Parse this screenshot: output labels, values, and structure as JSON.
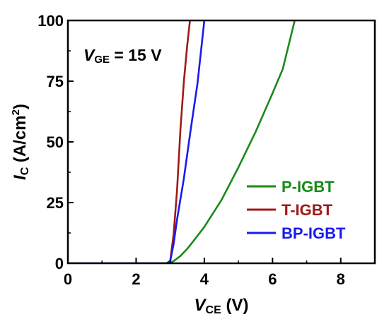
{
  "chart_data": {
    "type": "line",
    "x_axis": {
      "label_main": "V",
      "label_sub": "CE",
      "label_unit": " (V)",
      "range": [
        0,
        9
      ],
      "ticks": [
        0,
        2,
        4,
        6,
        8
      ],
      "tick_labels": [
        "0",
        "2",
        "4",
        "6",
        "8"
      ]
    },
    "y_axis": {
      "label_main": "I",
      "label_sub": "C",
      "label_unit_pre": " (A/cm",
      "label_unit_sup": "2",
      "label_unit_post": ")",
      "range": [
        0,
        100
      ],
      "ticks": [
        0,
        25,
        50,
        75,
        100
      ],
      "tick_labels": [
        "0",
        "25",
        "50",
        "75",
        "100"
      ]
    },
    "grid": false,
    "legend_position": "bottom-right",
    "annotation": {
      "main": "V",
      "sub": "GE",
      "rest": " = 15 V"
    },
    "series": [
      {
        "name": "P-IGBT",
        "color": "#1a8a1a",
        "points": [
          [
            0,
            0
          ],
          [
            2.9,
            0
          ],
          [
            3.0,
            0.3
          ],
          [
            3.1,
            0.9
          ],
          [
            3.3,
            3
          ],
          [
            3.5,
            6
          ],
          [
            3.7,
            9.5
          ],
          [
            4.0,
            15
          ],
          [
            4.5,
            26
          ],
          [
            5.0,
            39.5
          ],
          [
            5.5,
            54
          ],
          [
            6.0,
            70
          ],
          [
            6.3,
            80
          ],
          [
            6.65,
            100
          ]
        ]
      },
      {
        "name": "T-IGBT",
        "color": "#a01a1a",
        "points": [
          [
            0,
            0
          ],
          [
            2.9,
            0
          ],
          [
            3.0,
            1.0
          ],
          [
            3.1,
            12
          ],
          [
            3.2,
            30
          ],
          [
            3.3,
            55
          ],
          [
            3.4,
            75
          ],
          [
            3.5,
            90
          ],
          [
            3.58,
            100
          ]
        ]
      },
      {
        "name": "BP-IGBT",
        "color": "#1a1aee",
        "points": [
          [
            0,
            0
          ],
          [
            2.9,
            0
          ],
          [
            3.0,
            1.0
          ],
          [
            3.1,
            8
          ],
          [
            3.2,
            18
          ],
          [
            3.4,
            35
          ],
          [
            3.6,
            55
          ],
          [
            3.8,
            74
          ],
          [
            4.0,
            100
          ]
        ]
      }
    ]
  }
}
